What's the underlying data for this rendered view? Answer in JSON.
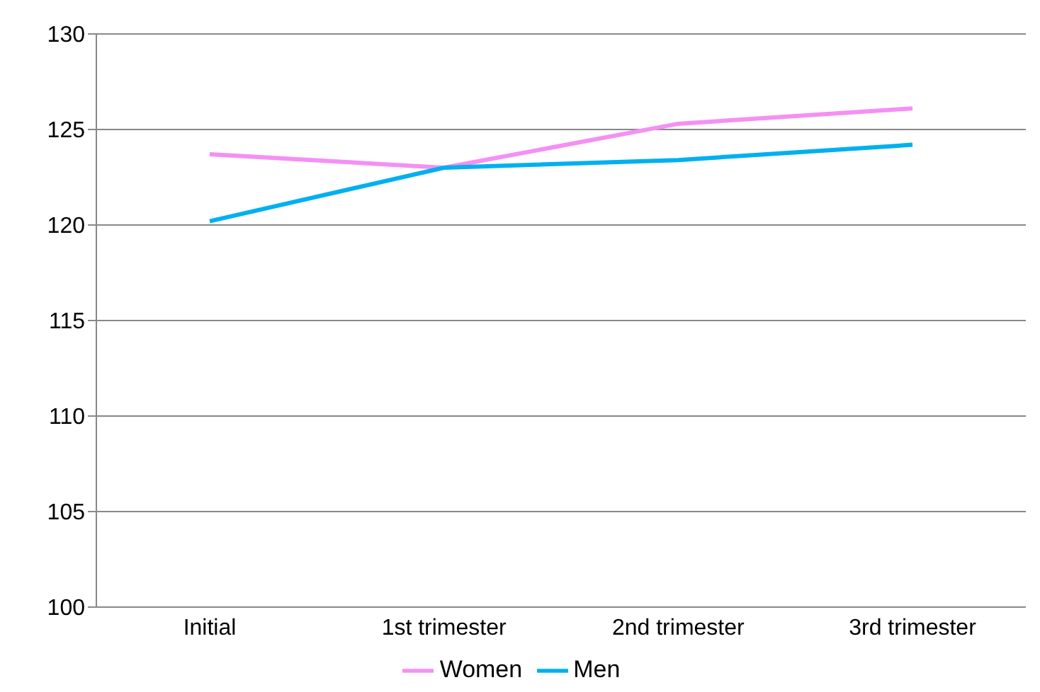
{
  "chart_data": {
    "type": "line",
    "categories": [
      "Initial",
      "1st trimester",
      "2nd trimester",
      "3rd trimester"
    ],
    "series": [
      {
        "name": "Women",
        "color": "#f490f4",
        "values": [
          123.7,
          123.0,
          125.3,
          126.1
        ]
      },
      {
        "name": "Men",
        "color": "#00b0f0",
        "values": [
          120.2,
          123.0,
          123.4,
          124.2
        ]
      }
    ],
    "ylim": [
      100,
      130
    ],
    "yticks": [
      100,
      105,
      110,
      115,
      120,
      125,
      130
    ],
    "grid": "y",
    "legend": "bottom",
    "marker": "none",
    "line_style": "solid"
  }
}
